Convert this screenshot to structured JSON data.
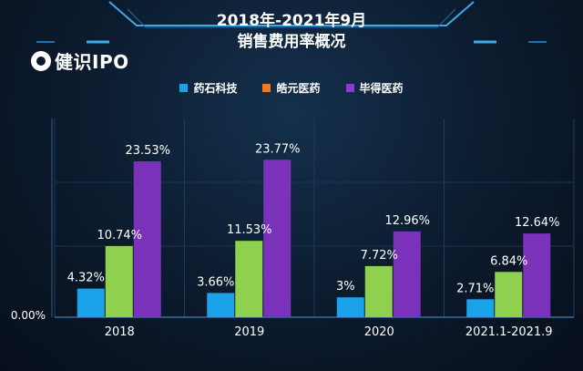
{
  "brand": {
    "logo_text": "健识IPO"
  },
  "chart_data": {
    "type": "bar",
    "title": "2018年-2021年9月",
    "subtitle": "销售费用率概况",
    "categories": [
      "2018",
      "2019",
      "2020",
      "2021.1-2021.9"
    ],
    "series": [
      {
        "name": "药石科技",
        "values": [
          4.32,
          3.66,
          3.0,
          2.71
        ],
        "labels": [
          "4.32%",
          "3.66%",
          "3%",
          "2.71%"
        ]
      },
      {
        "name": "皓元医药",
        "values": [
          10.74,
          11.53,
          7.72,
          6.84
        ],
        "labels": [
          "10.74%",
          "11.53%",
          "7.72%",
          "6.84%"
        ]
      },
      {
        "name": "毕得医药",
        "values": [
          23.53,
          23.77,
          12.96,
          12.64
        ],
        "labels": [
          "23.53%",
          "23.77%",
          "12.96%",
          "12.64%"
        ]
      }
    ],
    "legend_colors": [
      "#1aa3e8",
      "#f07a22",
      "#8a3ccf"
    ],
    "bar_colors": [
      "#1aa3e8",
      "#8fd14f",
      "#7b32bb"
    ],
    "y_tick_label": "0.00%",
    "ylim": [
      0,
      30
    ],
    "xlabel": "",
    "ylabel": "",
    "legend_position": "top"
  }
}
